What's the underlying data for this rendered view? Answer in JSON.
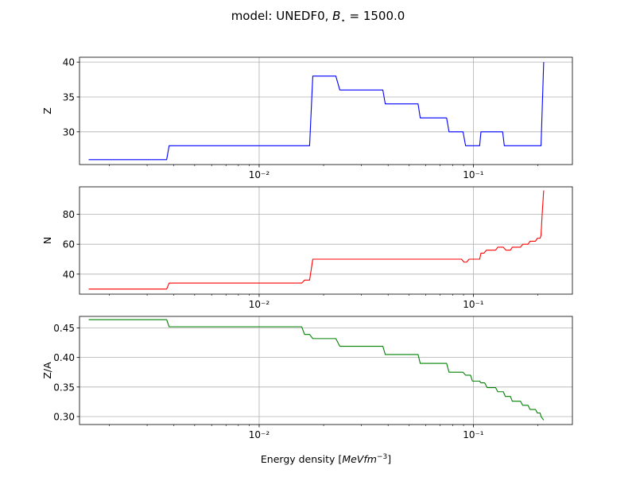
{
  "figure": {
    "title_prefix": "model: UNEDF0, ",
    "title_math": "B",
    "title_sub": "⋆",
    "title_suffix": " = 1500.0",
    "xlabel_prefix": "Energy density [",
    "xlabel_math": "MeVfm",
    "xlabel_sup": "−3",
    "xlabel_suffix": "]"
  },
  "chart_data": [
    {
      "type": "line",
      "ylabel": "Z",
      "color": "#0000ff",
      "xscale": "log",
      "xlim": [
        0.00145,
        0.29
      ],
      "ylim": [
        25.3,
        40.7
      ],
      "yticks": [
        30,
        35,
        40
      ],
      "xtick_labels": [
        "10⁻²",
        "10⁻¹"
      ],
      "grid": true,
      "x": [
        0.0016,
        0.0037,
        0.0038,
        0.0172,
        0.0178,
        0.0228,
        0.0238,
        0.0378,
        0.0388,
        0.0552,
        0.0565,
        0.075,
        0.077,
        0.0895,
        0.092,
        0.107,
        0.1085,
        0.137,
        0.1395,
        0.207,
        0.2095,
        0.213
      ],
      "y": [
        26,
        26,
        28,
        28,
        38,
        38,
        36,
        36,
        34,
        34,
        32,
        32,
        30,
        30,
        28,
        28,
        30,
        30,
        28,
        28,
        33,
        40
      ]
    },
    {
      "type": "line",
      "ylabel": "N",
      "color": "#ff0000",
      "xscale": "log",
      "xlim": [
        0.00145,
        0.29
      ],
      "ylim": [
        26.6,
        98.4
      ],
      "yticks": [
        40,
        60,
        80
      ],
      "xtick_labels": [
        "10⁻²",
        "10⁻¹"
      ],
      "grid": true,
      "x": [
        0.0016,
        0.0037,
        0.0038,
        0.0158,
        0.0163,
        0.0172,
        0.0178,
        0.088,
        0.0905,
        0.093,
        0.0955,
        0.107,
        0.1085,
        0.112,
        0.115,
        0.127,
        0.13,
        0.138,
        0.142,
        0.149,
        0.152,
        0.166,
        0.17,
        0.18,
        0.184,
        0.195,
        0.199,
        0.205,
        0.207,
        0.2095,
        0.213
      ],
      "y": [
        30,
        30,
        34,
        34,
        36,
        36,
        50,
        50,
        48,
        48,
        50,
        50,
        54,
        54,
        56,
        56,
        58,
        58,
        56,
        56,
        58,
        58,
        60,
        60,
        62,
        62,
        64,
        64,
        66,
        80,
        96
      ]
    },
    {
      "type": "line",
      "ylabel": "Z/A",
      "color": "#008000",
      "xscale": "log",
      "xlim": [
        0.00145,
        0.29
      ],
      "ylim": [
        0.2865,
        0.4695
      ],
      "yticks": [
        0.3,
        0.35,
        0.4,
        0.45
      ],
      "ytick_labels": [
        "0.30",
        "0.35",
        "0.40",
        "0.45"
      ],
      "xtick_labels": [
        "10⁻²",
        "10⁻¹"
      ],
      "grid": true,
      "x": [
        0.0016,
        0.0037,
        0.0038,
        0.0158,
        0.0163,
        0.0172,
        0.0178,
        0.0228,
        0.0238,
        0.0378,
        0.0388,
        0.0552,
        0.0565,
        0.075,
        0.077,
        0.0895,
        0.092,
        0.097,
        0.099,
        0.107,
        0.1085,
        0.113,
        0.116,
        0.127,
        0.13,
        0.138,
        0.141,
        0.149,
        0.152,
        0.166,
        0.17,
        0.18,
        0.184,
        0.195,
        0.199,
        0.205,
        0.207,
        0.213
      ],
      "y": [
        0.464,
        0.464,
        0.452,
        0.452,
        0.439,
        0.439,
        0.432,
        0.432,
        0.419,
        0.419,
        0.405,
        0.405,
        0.39,
        0.39,
        0.375,
        0.375,
        0.37,
        0.37,
        0.36,
        0.36,
        0.357,
        0.357,
        0.349,
        0.349,
        0.342,
        0.342,
        0.334,
        0.334,
        0.326,
        0.326,
        0.319,
        0.319,
        0.312,
        0.312,
        0.306,
        0.306,
        0.3,
        0.294
      ]
    }
  ]
}
